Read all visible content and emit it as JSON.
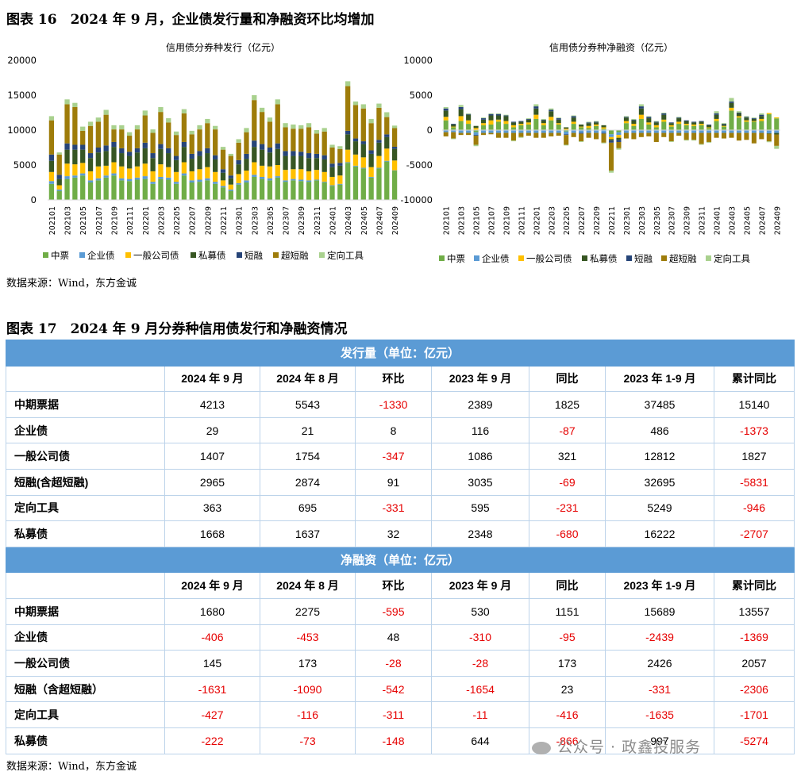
{
  "fig16": {
    "title": "图表 16　2024 年 9 月，企业债发行量和净融资环比均增加"
  },
  "fig17": {
    "title": "图表 17　2024 年 9 月分券种信用债发行和净融资情况"
  },
  "source1": "数据来源：Wind，东方金诚",
  "source2": "数据来源：Wind，东方金诚",
  "watermark": "公众号 · 政鑫投服务",
  "colors": {
    "中票": "#70ad47",
    "企业债": "#5b9bd5",
    "一般公司债": "#ffc000",
    "私募债": "#375623",
    "短融": "#264478",
    "超短融": "#9e7c0a",
    "定向工具": "#a9d18e",
    "table_header": "#5b9bd5",
    "negative": "#e60000"
  },
  "chart_data": [
    {
      "type": "bar",
      "stacked": true,
      "title": "信用债分券种发行（亿元）",
      "ylim": [
        0,
        20000
      ],
      "yticks": [
        "0",
        "5000",
        "10000",
        "15000",
        "20000"
      ],
      "xtick_labels": [
        "202101",
        "202103",
        "202105",
        "202107",
        "202109",
        "202111",
        "202201",
        "202203",
        "202205",
        "202207",
        "202209",
        "202211",
        "202301",
        "202303",
        "202305",
        "202307",
        "202309",
        "202311",
        "202401",
        "202403",
        "202405",
        "202407",
        "202409"
      ],
      "categories": [
        "202101",
        "202102",
        "202103",
        "202104",
        "202105",
        "202106",
        "202107",
        "202108",
        "202109",
        "202110",
        "202111",
        "202112",
        "202201",
        "202202",
        "202203",
        "202204",
        "202205",
        "202206",
        "202207",
        "202208",
        "202209",
        "202210",
        "202211",
        "202212",
        "202301",
        "202302",
        "202303",
        "202304",
        "202305",
        "202306",
        "202307",
        "202308",
        "202309",
        "202310",
        "202311",
        "202312",
        "202401",
        "202402",
        "202403",
        "202404",
        "202405",
        "202406",
        "202407",
        "202408",
        "202409"
      ],
      "legend": "bottom",
      "series": [
        {
          "name": "中票",
          "values": [
            2300,
            1300,
            3000,
            3200,
            3500,
            2500,
            2800,
            3200,
            3500,
            2800,
            2700,
            2900,
            3000,
            2300,
            3000,
            2900,
            2300,
            3500,
            2500,
            2600,
            2800,
            2300,
            1800,
            1300,
            2200,
            2500,
            3300,
            3000,
            2800,
            3200,
            2600,
            2800,
            2700,
            2600,
            2800,
            2500,
            2000,
            2200,
            5300,
            4800,
            4500,
            3200,
            4500,
            5500,
            4213
          ]
        },
        {
          "name": "企业债",
          "values": [
            400,
            200,
            400,
            300,
            300,
            300,
            300,
            300,
            300,
            300,
            300,
            300,
            400,
            300,
            300,
            300,
            300,
            300,
            300,
            300,
            300,
            300,
            200,
            200,
            200,
            300,
            300,
            300,
            300,
            200,
            200,
            200,
            200,
            200,
            100,
            100,
            100,
            100,
            100,
            100,
            100,
            100,
            100,
            100,
            29
          ]
        },
        {
          "name": "一般公司债",
          "values": [
            1300,
            600,
            1800,
            1600,
            1500,
            1300,
            1700,
            1400,
            1600,
            1700,
            1500,
            1600,
            1800,
            1500,
            1800,
            1500,
            1400,
            1600,
            1300,
            1500,
            1600,
            1400,
            800,
            700,
            1300,
            1400,
            1800,
            1600,
            1700,
            1600,
            1500,
            1400,
            1500,
            1300,
            1400,
            1400,
            1200,
            1200,
            1800,
            1600,
            1500,
            1400,
            1700,
            1754,
            1407
          ]
        },
        {
          "name": "私募债",
          "values": [
            1600,
            900,
            2000,
            2100,
            1900,
            1900,
            2000,
            2100,
            2200,
            1900,
            1800,
            2000,
            2200,
            1900,
            2200,
            2000,
            1700,
            2200,
            1800,
            1900,
            2000,
            1800,
            1100,
            900,
            1400,
            1700,
            2200,
            2300,
            2000,
            2300,
            2000,
            1900,
            1900,
            1900,
            1700,
            1800,
            1400,
            1400,
            2200,
            1900,
            1900,
            1900,
            1900,
            1637,
            1668
          ]
        },
        {
          "name": "短融",
          "values": [
            900,
            600,
            900,
            700,
            700,
            700,
            700,
            800,
            700,
            700,
            600,
            600,
            800,
            700,
            700,
            700,
            600,
            700,
            700,
            700,
            700,
            600,
            500,
            400,
            600,
            700,
            900,
            800,
            700,
            800,
            700,
            700,
            600,
            700,
            600,
            600,
            500,
            400,
            500,
            400,
            400,
            500,
            400,
            400,
            300
          ]
        },
        {
          "name": "超短融",
          "values": [
            4900,
            2900,
            5600,
            5400,
            2000,
            3900,
            3700,
            4400,
            1800,
            2700,
            2300,
            2700,
            3900,
            2900,
            4600,
            3700,
            3000,
            4100,
            2800,
            3100,
            3600,
            3700,
            2800,
            2800,
            2500,
            3100,
            5800,
            4600,
            3700,
            5600,
            3400,
            3200,
            3300,
            3700,
            2900,
            3400,
            2300,
            2000,
            6400,
            4800,
            4700,
            3900,
            4600,
            2474,
            2665
          ]
        },
        {
          "name": "定向工具",
          "values": [
            600,
            300,
            700,
            600,
            600,
            600,
            600,
            700,
            600,
            600,
            500,
            600,
            700,
            500,
            700,
            600,
            500,
            600,
            500,
            600,
            600,
            500,
            400,
            300,
            500,
            600,
            700,
            600,
            600,
            700,
            600,
            600,
            500,
            600,
            500,
            500,
            400,
            400,
            700,
            500,
            600,
            600,
            600,
            695,
            363
          ]
        }
      ]
    },
    {
      "type": "bar",
      "stacked": true,
      "title": "信用债分券种净融资（亿元）",
      "ylim": [
        -10000,
        10000
      ],
      "yticks": [
        "-10000",
        "-5000",
        "0",
        "5000",
        "10000"
      ],
      "xtick_labels": [
        "202101",
        "202103",
        "202105",
        "202107",
        "202109",
        "202111",
        "202201",
        "202203",
        "202205",
        "202207",
        "202209",
        "202211",
        "202301",
        "202303",
        "202305",
        "202307",
        "202309",
        "202311",
        "202401",
        "202403",
        "202405",
        "202407",
        "202409"
      ],
      "categories": [
        "202101",
        "202102",
        "202103",
        "202104",
        "202105",
        "202106",
        "202107",
        "202108",
        "202109",
        "202110",
        "202111",
        "202112",
        "202201",
        "202202",
        "202203",
        "202204",
        "202205",
        "202206",
        "202207",
        "202208",
        "202209",
        "202210",
        "202211",
        "202212",
        "202301",
        "202302",
        "202303",
        "202304",
        "202305",
        "202306",
        "202307",
        "202308",
        "202309",
        "202310",
        "202311",
        "202312",
        "202401",
        "202402",
        "202403",
        "202404",
        "202405",
        "202406",
        "202407",
        "202408",
        "202409"
      ],
      "legend": "bottom",
      "series": [
        {
          "name": "中票",
          "values": [
            1400,
            400,
            1300,
            900,
            -300,
            700,
            800,
            1200,
            900,
            400,
            700,
            800,
            1600,
            700,
            1400,
            800,
            -200,
            900,
            400,
            300,
            600,
            200,
            -600,
            -300,
            1000,
            600,
            1600,
            800,
            400,
            1200,
            500,
            900,
            700,
            600,
            700,
            300,
            1300,
            500,
            2800,
            1800,
            1200,
            1200,
            1300,
            2275,
            1680
          ]
        },
        {
          "name": "企业债",
          "values": [
            -300,
            -300,
            -400,
            -400,
            -400,
            -400,
            -400,
            -400,
            -400,
            -400,
            -400,
            -400,
            -400,
            -400,
            -400,
            -400,
            -400,
            -400,
            -400,
            -400,
            -400,
            -400,
            -400,
            -400,
            -400,
            -400,
            -400,
            -400,
            -400,
            -400,
            -400,
            -400,
            -400,
            -400,
            -400,
            -400,
            -400,
            -400,
            -400,
            -400,
            -400,
            -400,
            -400,
            -453,
            -406
          ]
        },
        {
          "name": "一般公司债",
          "values": [
            500,
            100,
            700,
            500,
            300,
            300,
            600,
            300,
            400,
            300,
            200,
            300,
            600,
            300,
            500,
            200,
            200,
            300,
            100,
            300,
            200,
            200,
            -300,
            -400,
            300,
            300,
            600,
            300,
            300,
            300,
            200,
            300,
            200,
            200,
            200,
            100,
            300,
            100,
            400,
            200,
            200,
            100,
            300,
            173,
            145
          ]
        },
        {
          "name": "私募债",
          "values": [
            900,
            300,
            1000,
            800,
            300,
            500,
            700,
            600,
            700,
            400,
            300,
            400,
            900,
            400,
            800,
            500,
            200,
            600,
            300,
            400,
            300,
            300,
            -200,
            -300,
            500,
            500,
            900,
            600,
            400,
            700,
            300,
            500,
            400,
            300,
            300,
            300,
            600,
            200,
            700,
            400,
            400,
            300,
            400,
            -73,
            -222
          ]
        },
        {
          "name": "短融",
          "values": [
            300,
            100,
            300,
            100,
            -100,
            200,
            200,
            200,
            100,
            100,
            100,
            100,
            300,
            100,
            200,
            200,
            -100,
            200,
            -100,
            100,
            100,
            -100,
            -300,
            -300,
            100,
            100,
            300,
            200,
            100,
            200,
            100,
            100,
            100,
            100,
            100,
            100,
            200,
            100,
            200,
            100,
            100,
            100,
            200,
            0,
            0
          ]
        },
        {
          "name": "超短融",
          "values": [
            -600,
            -900,
            -300,
            -300,
            -1300,
            -300,
            -200,
            -700,
            -700,
            -1100,
            -600,
            -400,
            -700,
            -700,
            -500,
            -400,
            -1400,
            -600,
            -1100,
            -700,
            -900,
            -1300,
            -4000,
            -900,
            -800,
            -900,
            -600,
            -500,
            -1300,
            -600,
            -1200,
            -400,
            -1000,
            -1000,
            -1600,
            -1300,
            -700,
            -800,
            -700,
            -1100,
            -1000,
            -1500,
            -900,
            -1090,
            -1631
          ]
        },
        {
          "name": "定向工具",
          "values": [
            200,
            -100,
            300,
            100,
            -200,
            100,
            100,
            100,
            100,
            -100,
            -100,
            100,
            300,
            100,
            200,
            100,
            -100,
            100,
            -100,
            100,
            100,
            -100,
            -300,
            -200,
            100,
            100,
            300,
            100,
            100,
            100,
            -100,
            100,
            -100,
            -100,
            -100,
            -100,
            300,
            100,
            500,
            200,
            100,
            100,
            200,
            -116,
            -427
          ]
        }
      ]
    }
  ],
  "table": {
    "issuance_header": "发行量（单位：亿元）",
    "net_header": "净融资（单位：亿元）",
    "columns": [
      "",
      "2024 年 9 月",
      "2024 年 8 月",
      "环比",
      "2023 年 9 月",
      "同比",
      "2023 年 1-9 月",
      "累计同比"
    ],
    "issuance_rows": [
      [
        "中期票据",
        "4213",
        "5543",
        "-1330",
        "2389",
        "1825",
        "37485",
        "15140"
      ],
      [
        "企业债",
        "29",
        "21",
        "8",
        "116",
        "-87",
        "486",
        "-1373"
      ],
      [
        "一般公司债",
        "1407",
        "1754",
        "-347",
        "1086",
        "321",
        "12812",
        "1827"
      ],
      [
        "短融(含超短融)",
        "2965",
        "2874",
        "91",
        "3035",
        "-69",
        "32695",
        "-5831"
      ],
      [
        "定向工具",
        "363",
        "695",
        "-331",
        "595",
        "-231",
        "5249",
        "-946"
      ],
      [
        "私募债",
        "1668",
        "1637",
        "32",
        "2348",
        "-680",
        "16222",
        "-2707"
      ]
    ],
    "net_rows": [
      [
        "中期票据",
        "1680",
        "2275",
        "-595",
        "530",
        "1151",
        "15689",
        "13557"
      ],
      [
        "企业债",
        "-406",
        "-453",
        "48",
        "-310",
        "-95",
        "-2439",
        "-1369"
      ],
      [
        "一般公司债",
        "145",
        "173",
        "-28",
        "-28",
        "173",
        "2426",
        "2057"
      ],
      [
        "短融（含超短融）",
        "-1631",
        "-1090",
        "-542",
        "-1654",
        "23",
        "-331",
        "-2306"
      ],
      [
        "定向工具",
        "-427",
        "-116",
        "-311",
        "-11",
        "-416",
        "-1635",
        "-1701"
      ],
      [
        "私募债",
        "-222",
        "-73",
        "-148",
        "644",
        "-866",
        "997",
        "-5274"
      ]
    ]
  }
}
